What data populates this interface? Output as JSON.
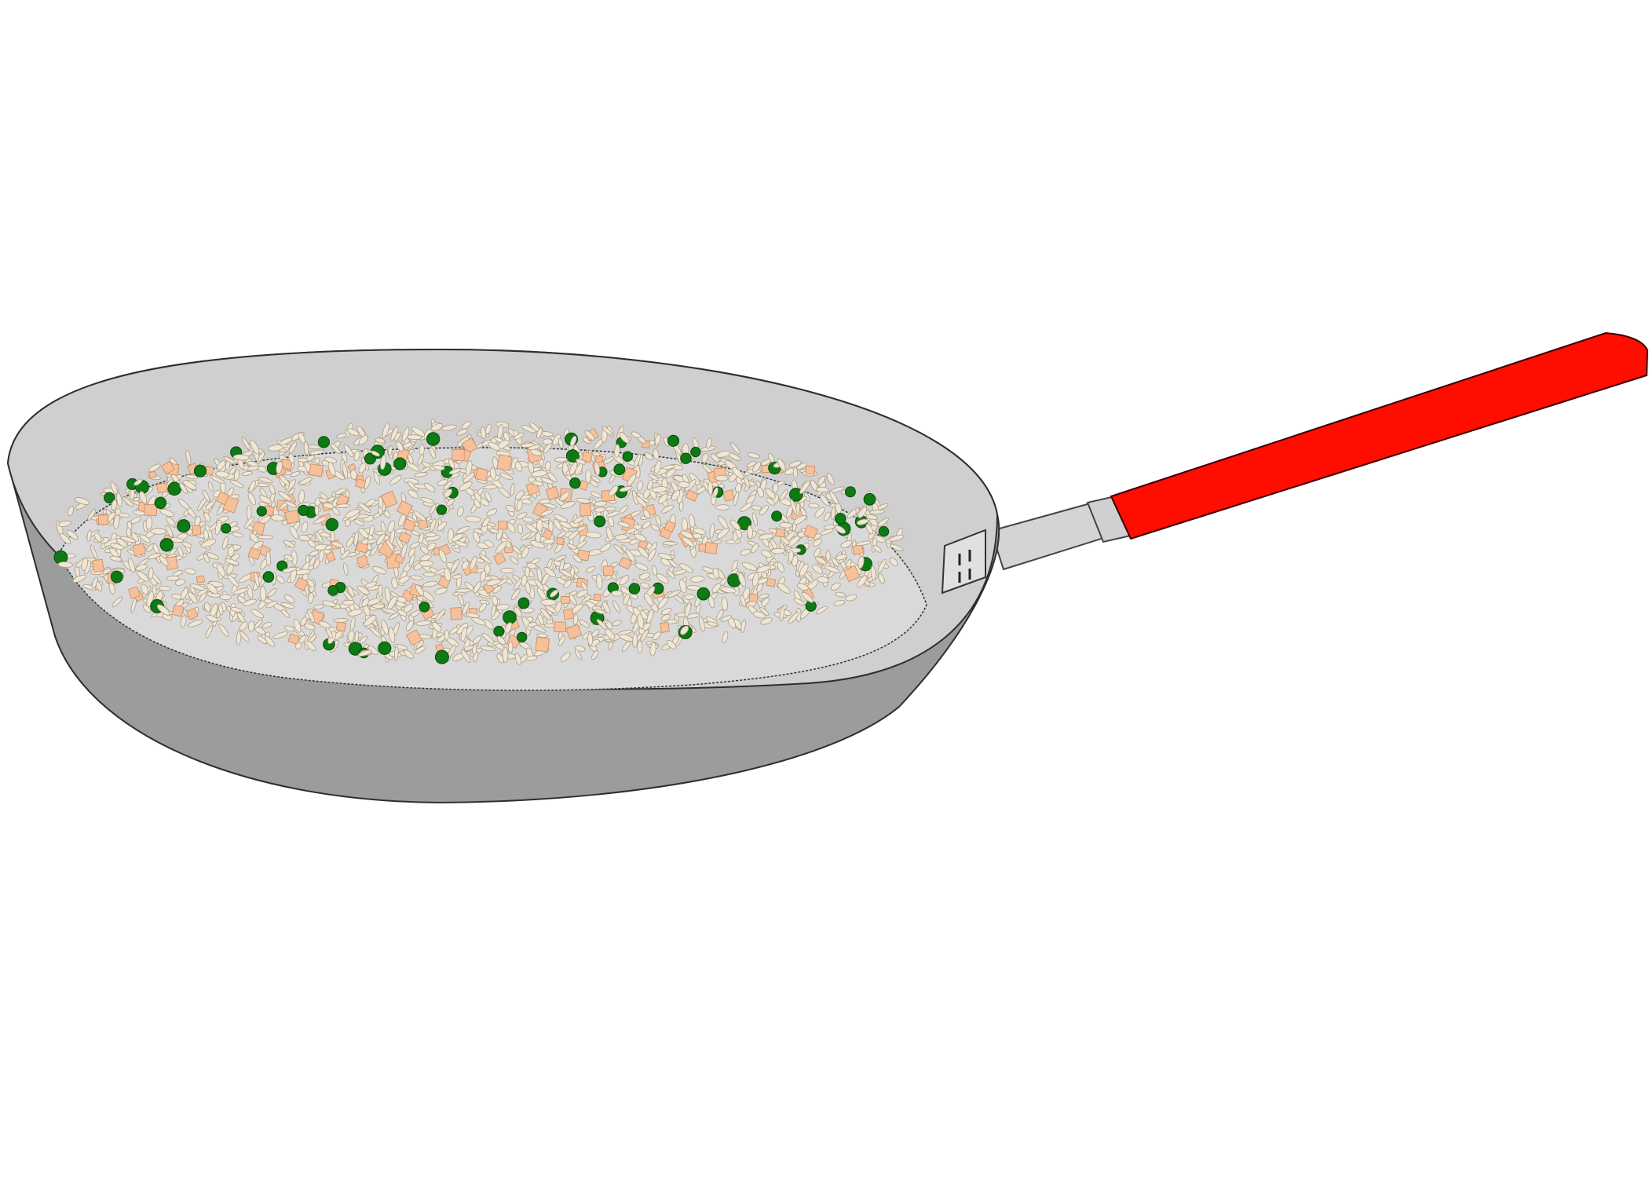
{
  "illustration": {
    "subject": "frying-pan",
    "contents": [
      "rice-grain",
      "pea",
      "carrot-cube"
    ]
  },
  "colors": {
    "background": "#ffffff",
    "pan_outer_body": "#9c9c9c",
    "pan_inner_wall": "#cfcfcf",
    "pan_rim_outline": "#3a3a3a",
    "pan_floor": "#dedede",
    "handle_grip": "#ff0d00",
    "handle_shaft": "#d4d4d4",
    "rivet_plate": "#e0e0e0",
    "rice": "#efe6d6",
    "rice_outline": "#a89c88",
    "pea": "#0e7a14",
    "pea_outline": "#064a0a",
    "carrot": "#f6c09a",
    "carrot_outline": "#c88a5c"
  }
}
